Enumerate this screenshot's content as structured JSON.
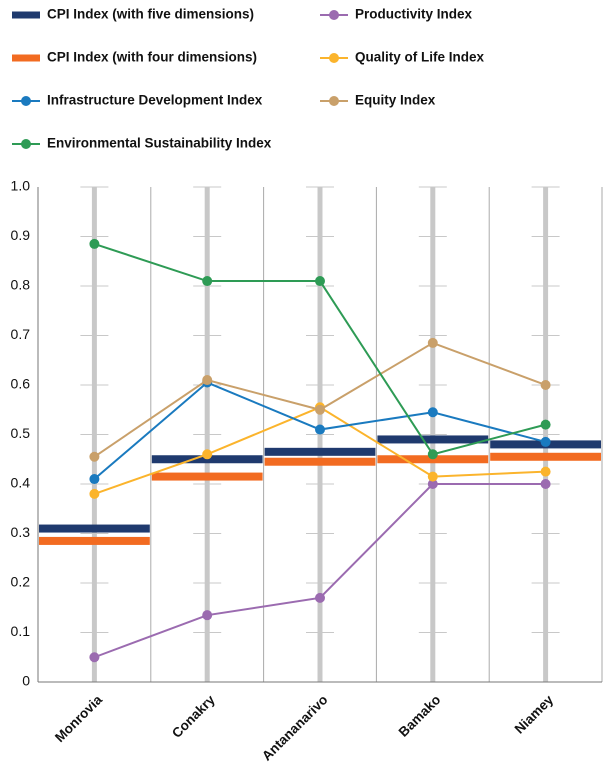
{
  "chart_data": {
    "type": "line",
    "categories": [
      "Monrovia",
      "Conakry",
      "Antananarivo",
      "Bamako",
      "Niamey"
    ],
    "series": [
      {
        "name": "CPI Index (with five dimensions)",
        "color": "#1f3a6e",
        "mark": "bar",
        "values": [
          0.31,
          0.45,
          0.465,
          0.49,
          0.48
        ]
      },
      {
        "name": "Productivity Index",
        "color": "#9b6bb0",
        "mark": "line",
        "values": [
          0.05,
          0.135,
          0.17,
          0.4,
          0.4
        ]
      },
      {
        "name": "CPI Index (with four dimensions)",
        "color": "#f26b21",
        "mark": "bar",
        "values": [
          0.285,
          0.415,
          0.445,
          0.45,
          0.455
        ]
      },
      {
        "name": "Quality of Life Index",
        "color": "#fbb42c",
        "mark": "line",
        "values": [
          0.38,
          0.46,
          0.555,
          0.415,
          0.425
        ]
      },
      {
        "name": "Infrastructure Development Index",
        "color": "#1a7abf",
        "mark": "line",
        "values": [
          0.41,
          0.605,
          0.51,
          0.545,
          0.485
        ]
      },
      {
        "name": "Equity Index",
        "color": "#c9a06a",
        "mark": "line",
        "values": [
          0.455,
          0.61,
          0.55,
          0.685,
          0.6
        ]
      },
      {
        "name": "Environmental Sustainability Index",
        "color": "#2e9b55",
        "mark": "line",
        "values": [
          0.885,
          0.81,
          0.81,
          0.46,
          0.52
        ]
      }
    ],
    "ylim": [
      0,
      1
    ],
    "yticks": [
      0,
      0.1,
      0.2,
      0.3,
      0.4,
      0.5,
      0.6,
      0.7,
      0.8,
      0.9,
      {
        "value": 1,
        "label": "1.0"
      }
    ]
  }
}
